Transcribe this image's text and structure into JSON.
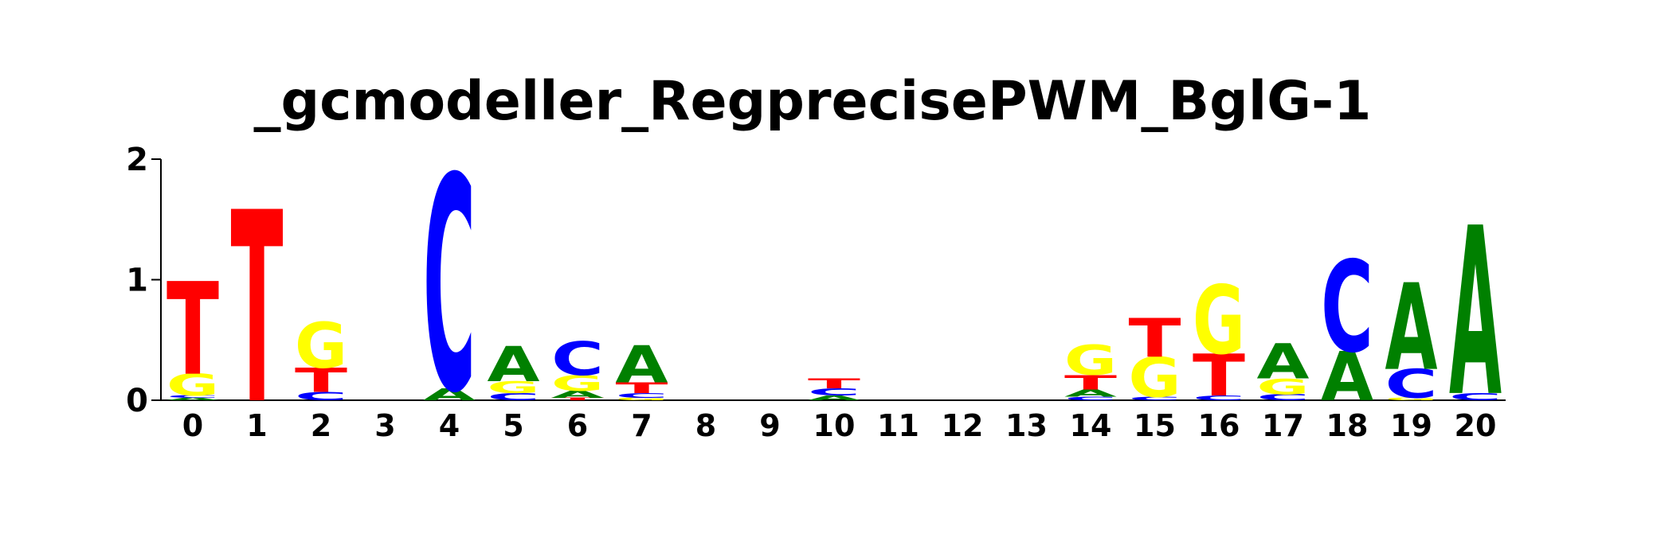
{
  "chart_data": {
    "type": "sequence-logo",
    "title": "_gcmodeller_RegprecisePWM_BglG-1",
    "xlabel": "",
    "ylabel": "",
    "ylim": [
      0,
      2
    ],
    "y_ticks": [
      "0",
      "1",
      "2"
    ],
    "grid": false,
    "colors": {
      "A": "#008000",
      "C": "#0000ff",
      "G": "#ffff00",
      "T": "#ff0000"
    },
    "positions": [
      {
        "label": "0",
        "stack": [
          {
            "base": "A",
            "value": 0.02
          },
          {
            "base": "C",
            "value": 0.02
          },
          {
            "base": "G",
            "value": 0.18
          },
          {
            "base": "T",
            "value": 0.77
          }
        ]
      },
      {
        "label": "1",
        "stack": [
          {
            "base": "T",
            "value": 1.59
          }
        ]
      },
      {
        "label": "2",
        "stack": [
          {
            "base": "C",
            "value": 0.07
          },
          {
            "base": "T",
            "value": 0.2
          },
          {
            "base": "G",
            "value": 0.38
          }
        ]
      },
      {
        "label": "3",
        "stack": []
      },
      {
        "label": "4",
        "stack": [
          {
            "base": "A",
            "value": 0.1
          },
          {
            "base": "C",
            "value": 1.78
          }
        ]
      },
      {
        "label": "5",
        "stack": [
          {
            "base": "C",
            "value": 0.06
          },
          {
            "base": "G",
            "value": 0.1
          },
          {
            "base": "A",
            "value": 0.29
          }
        ]
      },
      {
        "label": "6",
        "stack": [
          {
            "base": "T",
            "value": 0.02
          },
          {
            "base": "A",
            "value": 0.06
          },
          {
            "base": "G",
            "value": 0.13
          },
          {
            "base": "C",
            "value": 0.28
          }
        ]
      },
      {
        "label": "7",
        "stack": [
          {
            "base": "G",
            "value": 0.02
          },
          {
            "base": "C",
            "value": 0.04
          },
          {
            "base": "T",
            "value": 0.09
          },
          {
            "base": "A",
            "value": 0.31
          }
        ]
      },
      {
        "label": "8",
        "stack": []
      },
      {
        "label": "9",
        "stack": []
      },
      {
        "label": "10",
        "stack": [
          {
            "base": "A",
            "value": 0.04
          },
          {
            "base": "C",
            "value": 0.06
          },
          {
            "base": "T",
            "value": 0.08
          }
        ]
      },
      {
        "label": "11",
        "stack": []
      },
      {
        "label": "12",
        "stack": []
      },
      {
        "label": "13",
        "stack": []
      },
      {
        "label": "14",
        "stack": [
          {
            "base": "C",
            "value": 0.03
          },
          {
            "base": "A",
            "value": 0.06
          },
          {
            "base": "T",
            "value": 0.12
          },
          {
            "base": "G",
            "value": 0.25
          }
        ]
      },
      {
        "label": "15",
        "stack": [
          {
            "base": "C",
            "value": 0.03
          },
          {
            "base": "G",
            "value": 0.33
          },
          {
            "base": "T",
            "value": 0.32
          }
        ]
      },
      {
        "label": "16",
        "stack": [
          {
            "base": "C",
            "value": 0.04
          },
          {
            "base": "T",
            "value": 0.35
          },
          {
            "base": "G",
            "value": 0.57
          }
        ]
      },
      {
        "label": "17",
        "stack": [
          {
            "base": "C",
            "value": 0.05
          },
          {
            "base": "G",
            "value": 0.13
          },
          {
            "base": "A",
            "value": 0.29
          }
        ]
      },
      {
        "label": "18",
        "stack": [
          {
            "base": "A",
            "value": 0.41
          },
          {
            "base": "C",
            "value": 0.76
          }
        ]
      },
      {
        "label": "19",
        "stack": [
          {
            "base": "G",
            "value": 0.02
          },
          {
            "base": "C",
            "value": 0.24
          },
          {
            "base": "A",
            "value": 0.72
          }
        ]
      },
      {
        "label": "20",
        "stack": [
          {
            "base": "C",
            "value": 0.06
          },
          {
            "base": "A",
            "value": 1.4
          }
        ]
      }
    ]
  }
}
